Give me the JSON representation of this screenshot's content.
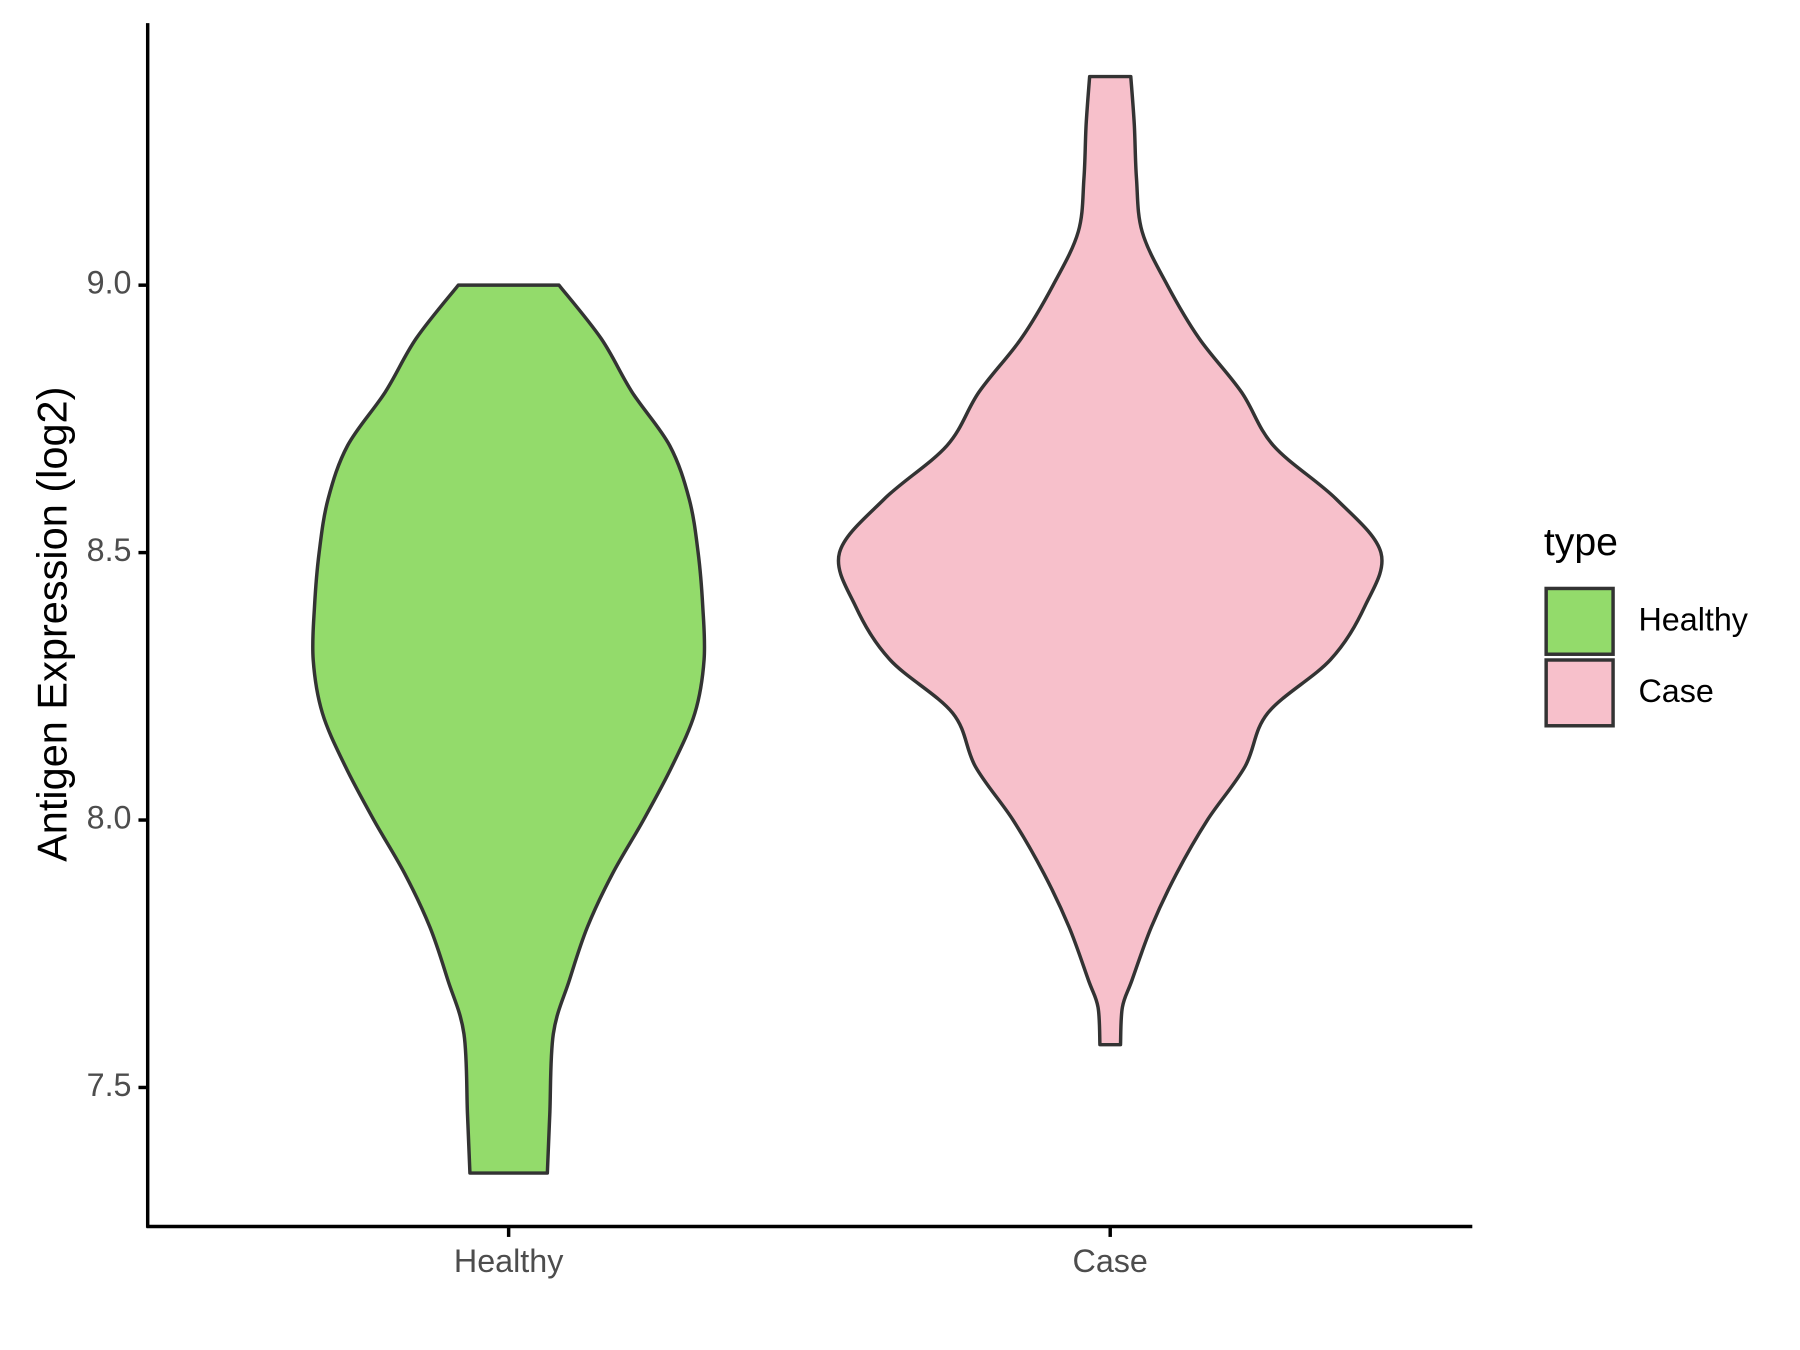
{
  "chart_data": {
    "type": "violin",
    "y_label": "Antigen Expression (log2)",
    "legend_title": "type",
    "categories": [
      "Healthy",
      "Case"
    ],
    "series": [
      {
        "name": "Healthy",
        "color": "#93db6b",
        "y": [
          7.34,
          7.45,
          7.6,
          7.7,
          7.8,
          7.9,
          8.0,
          8.1,
          8.2,
          8.3,
          8.4,
          8.5,
          8.6,
          8.7,
          8.8,
          8.9,
          9.0
        ],
        "width": [
          0.143,
          0.152,
          0.165,
          0.224,
          0.291,
          0.384,
          0.498,
          0.603,
          0.688,
          0.722,
          0.717,
          0.7,
          0.667,
          0.595,
          0.456,
          0.342,
          0.186
        ]
      },
      {
        "name": "Case",
        "color": "#f7c0cb",
        "y": [
          7.58,
          7.65,
          7.7,
          7.8,
          7.9,
          8.0,
          8.1,
          8.2,
          8.3,
          8.4,
          8.5,
          8.6,
          8.7,
          8.8,
          8.9,
          9.0,
          9.1,
          9.2,
          9.3,
          9.39
        ],
        "width": [
          0.038,
          0.045,
          0.08,
          0.152,
          0.245,
          0.359,
          0.498,
          0.582,
          0.814,
          0.941,
          1.0,
          0.835,
          0.603,
          0.485,
          0.329,
          0.211,
          0.118,
          0.097,
          0.089,
          0.076
        ]
      }
    ],
    "ylim": [
      7.24,
      9.49
    ],
    "yticks": [
      {
        "value": 7.5,
        "label": "7.5"
      },
      {
        "value": 8,
        "label": "8.0"
      },
      {
        "value": 8.5,
        "label": "8.5"
      },
      {
        "value": 9,
        "label": "9.0"
      }
    ]
  }
}
